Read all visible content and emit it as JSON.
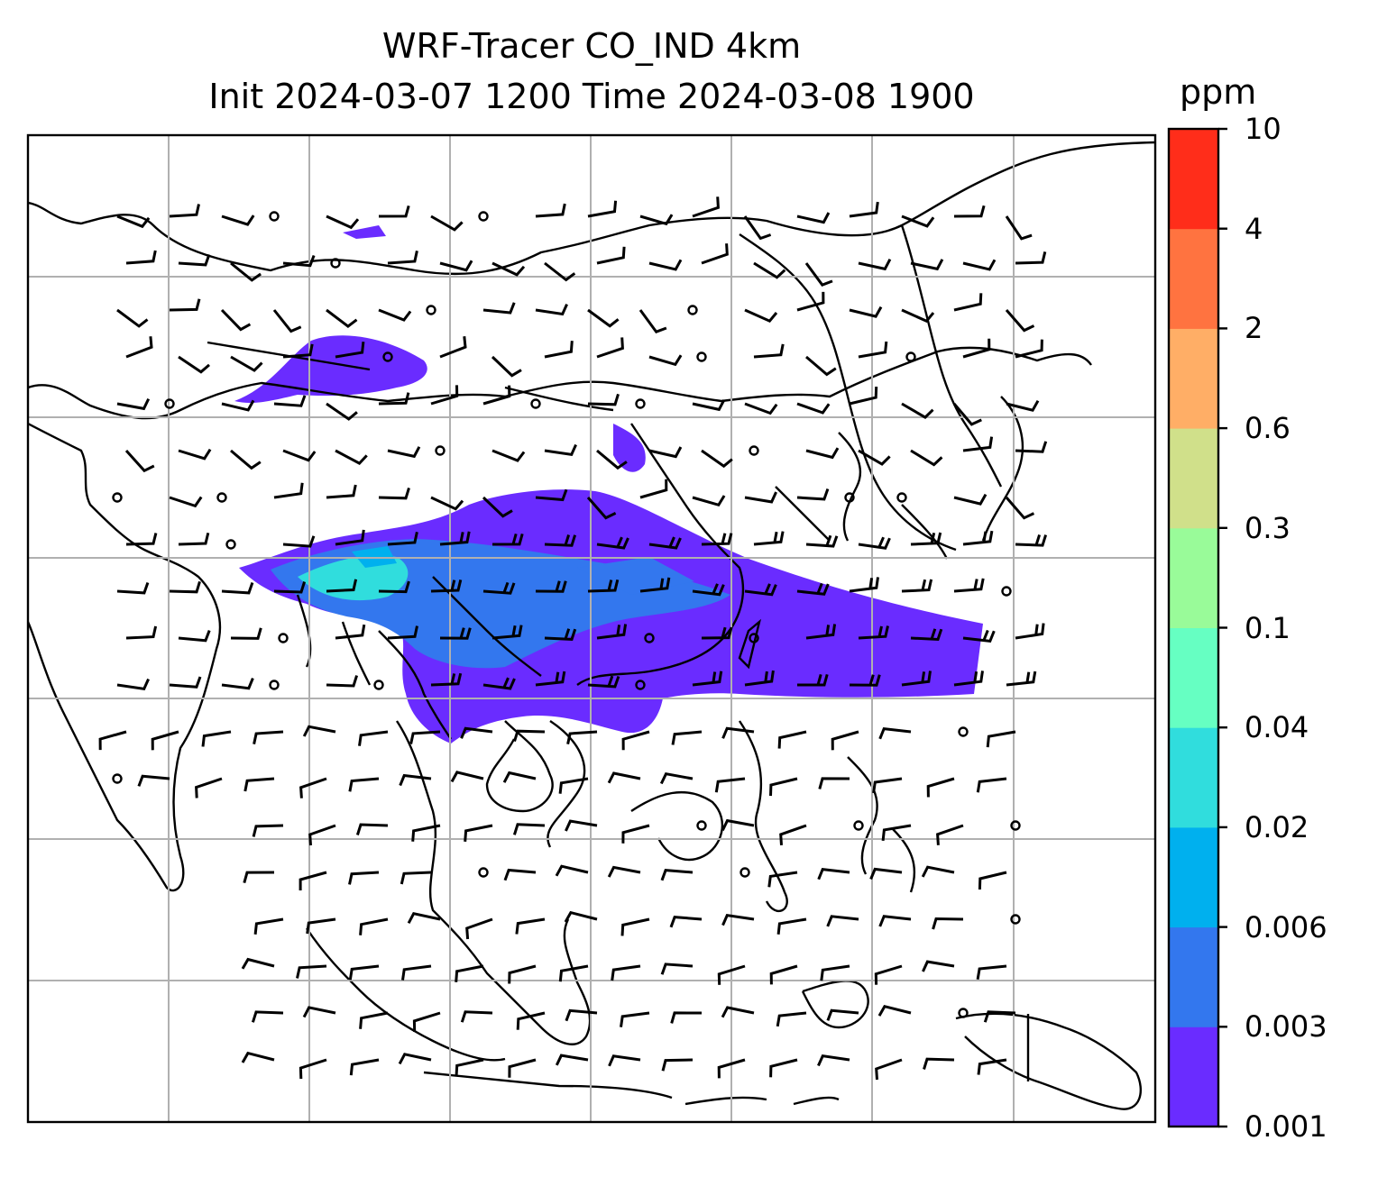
{
  "title_line1": "WRF-Tracer CO_IND 4km",
  "title_line2": "Init 2024-03-07 1200 Time 2024-03-08 1900",
  "colorbar": {
    "unit": "ppm",
    "levels": [
      "0.001",
      "0.003",
      "0.006",
      "0.02",
      "0.04",
      "0.1",
      "0.3",
      "0.6",
      "2",
      "4",
      "10"
    ],
    "colors": [
      "#6a2cff",
      "#3377ee",
      "#00b0ee",
      "#30dddd",
      "#66ffc2",
      "#99fb99",
      "#d0e08a",
      "#ffae66",
      "#ff7340",
      "#ff2d1a"
    ]
  },
  "map": {
    "gridlines": true,
    "wind_barbs": true,
    "coastlines": true
  }
}
